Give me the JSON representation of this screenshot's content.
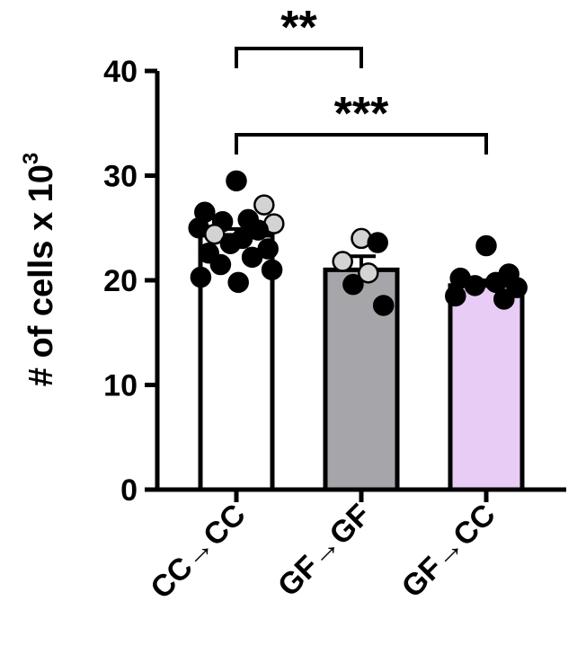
{
  "chart_data": {
    "type": "bar",
    "ylabel": "# of cells x 10",
    "ylabel_sup": "3",
    "ylim": [
      0,
      40
    ],
    "yticks": [
      "0",
      "10",
      "20",
      "30",
      "40"
    ],
    "categories": [
      "CC→CC",
      "GF→GF",
      "GF→CC"
    ],
    "values": [
      24.3,
      21.0,
      19.5
    ],
    "sem": [
      0.6,
      1.3,
      0.5
    ],
    "bar_colors": [
      "#ffffff",
      "#a6a6aa",
      "#e8ccf5"
    ],
    "points": [
      [
        {
          "y": 29.5,
          "c": "dark"
        },
        {
          "y": 27.2,
          "c": "light"
        },
        {
          "y": 26.5,
          "c": "dark"
        },
        {
          "y": 25.8,
          "c": "dark"
        },
        {
          "y": 25.6,
          "c": "dark"
        },
        {
          "y": 25.4,
          "c": "light"
        },
        {
          "y": 25.0,
          "c": "dark"
        },
        {
          "y": 24.8,
          "c": "dark"
        },
        {
          "y": 24.4,
          "c": "light"
        },
        {
          "y": 24.0,
          "c": "dark"
        },
        {
          "y": 23.5,
          "c": "dark"
        },
        {
          "y": 23.0,
          "c": "dark"
        },
        {
          "y": 22.6,
          "c": "dark"
        },
        {
          "y": 22.2,
          "c": "dark"
        },
        {
          "y": 21.5,
          "c": "dark"
        },
        {
          "y": 21.0,
          "c": "dark"
        },
        {
          "y": 20.3,
          "c": "dark"
        },
        {
          "y": 19.8,
          "c": "dark"
        }
      ],
      [
        {
          "y": 24.0,
          "c": "light"
        },
        {
          "y": 23.6,
          "c": "dark"
        },
        {
          "y": 21.8,
          "c": "light"
        },
        {
          "y": 20.7,
          "c": "light"
        },
        {
          "y": 19.6,
          "c": "dark"
        },
        {
          "y": 17.6,
          "c": "dark"
        }
      ],
      [
        {
          "y": 23.3,
          "c": "dark"
        },
        {
          "y": 20.6,
          "c": "dark"
        },
        {
          "y": 20.2,
          "c": "dark"
        },
        {
          "y": 19.8,
          "c": "dark"
        },
        {
          "y": 19.5,
          "c": "dark"
        },
        {
          "y": 19.3,
          "c": "dark"
        },
        {
          "y": 18.5,
          "c": "dark"
        },
        {
          "y": 18.2,
          "c": "dark"
        }
      ]
    ],
    "significance": [
      {
        "from": 0,
        "to": 1,
        "label": "**"
      },
      {
        "from": 0,
        "to": 2,
        "label": "***"
      }
    ]
  }
}
